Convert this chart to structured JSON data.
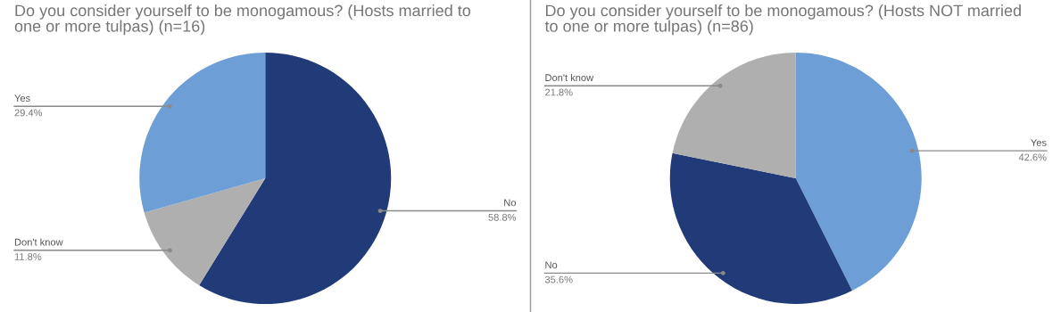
{
  "chart_data": [
    {
      "type": "pie",
      "title": "Do you consider yourself to be monogamous? (Hosts married to one or more tulpas) (n=16)",
      "categories": [
        "No",
        "Don't know",
        "Yes"
      ],
      "values": [
        58.8,
        11.8,
        29.4
      ],
      "colors": [
        "#213a78",
        "#afafaf",
        "#6d9ed6"
      ],
      "value_labels": [
        "58.8%",
        "11.8%",
        "29.4%"
      ]
    },
    {
      "type": "pie",
      "title": "Do you consider yourself to be monogamous? (Hosts NOT married to one or more tulpas) (n=86)",
      "categories": [
        "Yes",
        "No",
        "Don't know"
      ],
      "values": [
        42.6,
        35.6,
        21.8
      ],
      "colors": [
        "#6d9ed6",
        "#213a78",
        "#afafaf"
      ],
      "value_labels": [
        "42.6%",
        "35.6%",
        "21.8%"
      ]
    }
  ]
}
